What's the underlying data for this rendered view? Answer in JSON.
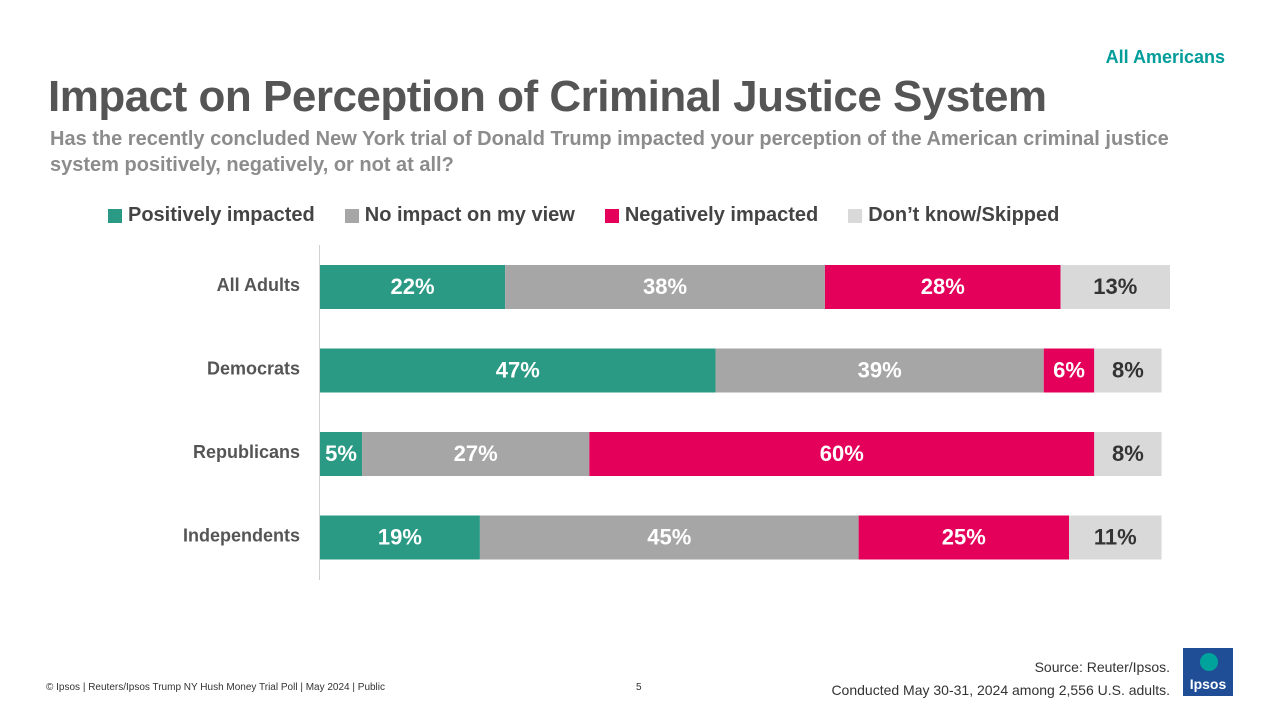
{
  "header": {
    "tag": "All Americans",
    "title": "Impact on Perception of Criminal Justice System",
    "subtitle": "Has the recently concluded New York trial of Donald Trump impacted your perception of the American criminal justice system positively, negatively, or not at all?"
  },
  "colors": {
    "positive": "#2a9a84",
    "no_impact": "#a6a6a6",
    "negative": "#e4005a",
    "dont_know": "#d9d9d9",
    "accent": "#009d9a",
    "logo": "#1f4e96"
  },
  "legend": [
    {
      "label": "Positively impacted",
      "color": "#2a9a84"
    },
    {
      "label": "No impact on my view",
      "color": "#a6a6a6"
    },
    {
      "label": "Negatively impacted",
      "color": "#e4005a"
    },
    {
      "label": "Don’t know/Skipped",
      "color": "#d9d9d9"
    }
  ],
  "chart_data": {
    "type": "bar",
    "orientation": "horizontal",
    "stacked": true,
    "title": "Impact on Perception of Criminal Justice System",
    "categories": [
      "All Adults",
      "Democrats",
      "Republicans",
      "Independents"
    ],
    "series": [
      {
        "name": "Positively impacted",
        "values": [
          22,
          47,
          5,
          19
        ],
        "labels": [
          "22%",
          "47%",
          "5%",
          "19%"
        ],
        "color": "#2a9a84",
        "label_color": "#ffffff"
      },
      {
        "name": "No impact on my view",
        "values": [
          38,
          39,
          27,
          45
        ],
        "labels": [
          "38%",
          "39%",
          "27%",
          "45%"
        ],
        "color": "#a6a6a6",
        "label_color": "#ffffff"
      },
      {
        "name": "Negatively impacted",
        "values": [
          28,
          6,
          60,
          25
        ],
        "labels": [
          "28%",
          "6%",
          "60%",
          "25%"
        ],
        "color": "#e4005a",
        "label_color": "#ffffff"
      },
      {
        "name": "Don’t know/Skipped",
        "values": [
          13,
          8,
          8,
          11
        ],
        "labels": [
          "13%",
          "8%",
          "8%",
          "11%"
        ],
        "color": "#d9d9d9",
        "label_color": "#333333"
      }
    ],
    "xlim": [
      0,
      101
    ],
    "grid": false,
    "legend_position": "top"
  },
  "footer": {
    "source_line1": "Source: Reuter/Ipsos.",
    "source_line2": "Conducted May 30-31, 2024 among 2,556 U.S. adults.",
    "copyright": "© Ipsos | Reuters/Ipsos Trump NY Hush Money Trial Poll | May 2024 | Public",
    "page_number": "5",
    "logo_text": "Ipsos"
  }
}
